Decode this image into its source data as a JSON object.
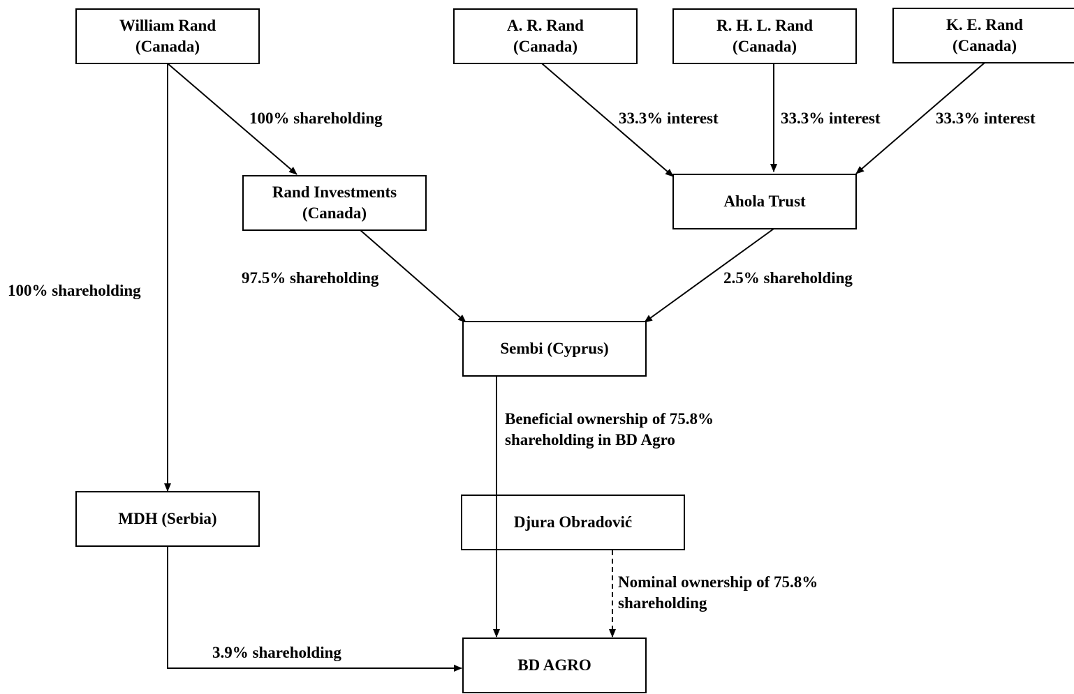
{
  "entities": {
    "william_rand": {
      "name": "William Rand",
      "country": "(Canada)"
    },
    "ar_rand": {
      "name": "A. R. Rand",
      "country": "(Canada)"
    },
    "rhl_rand": {
      "name": "R. H. L. Rand",
      "country": "(Canada)"
    },
    "ke_rand": {
      "name": "K. E. Rand",
      "country": "(Canada)"
    },
    "rand_investments": {
      "name": "Rand Investments",
      "country": "(Canada)"
    },
    "ahola_trust": {
      "name": "Ahola Trust"
    },
    "sembi": {
      "name": "Sembi (Cyprus)"
    },
    "mdh": {
      "name": "MDH (Serbia)"
    },
    "djura": {
      "name": "Djura Obradović"
    },
    "bd_agro": {
      "name": "BD AGRO"
    }
  },
  "relations": {
    "william_to_rand_investments": "100% shareholding",
    "william_to_mdh": "100% shareholding",
    "ar_to_ahola": "33.3% interest",
    "rhl_to_ahola": "33.3% interest",
    "ke_to_ahola": "33.3% interest",
    "rand_investments_to_sembi": "97.5% shareholding",
    "ahola_to_sembi": "2.5% shareholding",
    "sembi_to_bd_agro_line1": "Beneficial ownership of 75.8%",
    "sembi_to_bd_agro_line2": "shareholding in BD Agro",
    "djura_to_bd_agro_line1": "Nominal ownership of 75.8%",
    "djura_to_bd_agro_line2": "shareholding",
    "mdh_to_bd_agro": "3.9% shareholding"
  },
  "line_color": "#000000",
  "background_color": "#ffffff"
}
